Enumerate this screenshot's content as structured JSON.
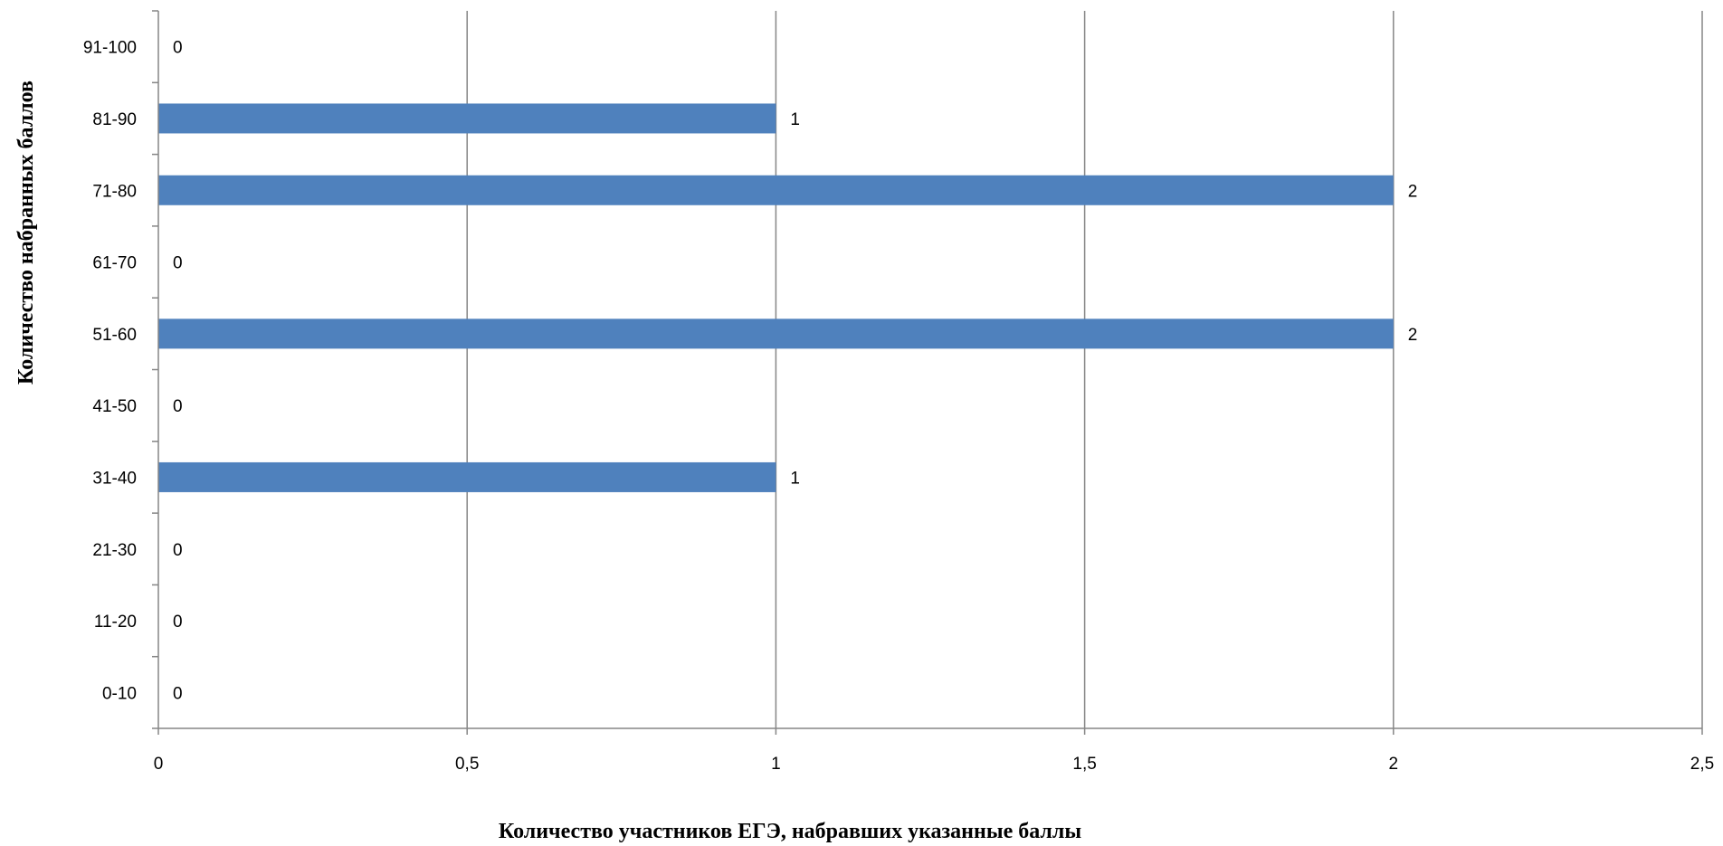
{
  "chart_data": {
    "type": "bar",
    "orientation": "horizontal",
    "categories": [
      "0-10",
      "11-20",
      "21-30",
      "31-40",
      "41-50",
      "51-60",
      "61-70",
      "71-80",
      "81-90",
      "91-100"
    ],
    "values": [
      0,
      0,
      0,
      1,
      0,
      2,
      0,
      2,
      1,
      0
    ],
    "data_labels": [
      "0",
      "0",
      "0",
      "1",
      "0",
      "2",
      "0",
      "2",
      "1",
      "0"
    ],
    "xlabel": "Количество участников ЕГЭ, набравших указанные баллы",
    "ylabel": "Количество набранных баллов",
    "xlim": [
      0,
      2.5
    ],
    "x_ticks": [
      0,
      0.5,
      1,
      1.5,
      2,
      2.5
    ],
    "x_tick_labels": [
      "0",
      "0,5",
      "1",
      "1,5",
      "2",
      "2,5"
    ],
    "grid": "vertical",
    "legend": "none",
    "colors": {
      "bar": "#4f81bd",
      "grid": "#868686",
      "axis": "#868686"
    }
  }
}
